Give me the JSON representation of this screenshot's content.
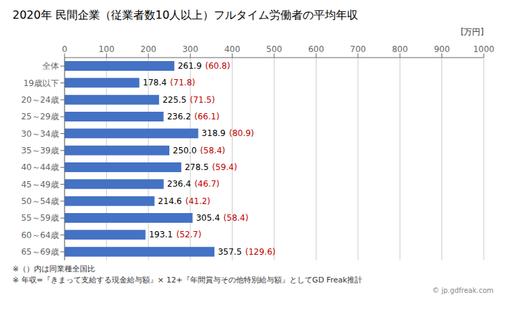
{
  "chart_data": {
    "type": "bar",
    "orientation": "horizontal",
    "title": "2020年 民間企業（従業者数10人以上）フルタイム労働者の平均年収",
    "xlabel": "[万円]",
    "categories": [
      "全体",
      "19歳以下",
      "20～24歳",
      "25～29歳",
      "30～34歳",
      "35～39歳",
      "40～44歳",
      "45～49歳",
      "50～54歳",
      "55～59歳",
      "60～64歳",
      "65～69歳"
    ],
    "values": [
      261.9,
      178.4,
      225.5,
      236.2,
      318.9,
      250.0,
      278.5,
      236.4,
      214.6,
      305.4,
      193.1,
      357.5
    ],
    "value_labels": [
      "261.9",
      "178.4",
      "225.5",
      "236.2",
      "318.9",
      "250.0",
      "278.5",
      "236.4",
      "214.6",
      "305.4",
      "193.1",
      "357.5"
    ],
    "ratios": [
      60.8,
      71.8,
      71.5,
      66.1,
      80.9,
      58.4,
      59.4,
      46.7,
      41.2,
      58.4,
      52.7,
      129.6
    ],
    "ratio_labels": [
      "(60.8)",
      "(71.8)",
      "(71.5)",
      "(66.1)",
      "(80.9)",
      "(58.4)",
      "(59.4)",
      "(46.7)",
      "(41.2)",
      "(58.4)",
      "(52.7)",
      "(129.6)"
    ],
    "ratio_color": "#C00000",
    "color": "#4472C4",
    "xlim": [
      0,
      1000
    ],
    "xticks": [
      0,
      100,
      200,
      300,
      400,
      500,
      600,
      700,
      800,
      900,
      1000
    ],
    "grid": true,
    "data_labels": true,
    "annotations": [
      "※（）内は同業種全国比",
      "※ 年収=『きまって支給する現金給与額』× 12+『年間賞与その他特別給与額』としてGD Freak推計",
      "© jp.gdfreak.com"
    ]
  }
}
